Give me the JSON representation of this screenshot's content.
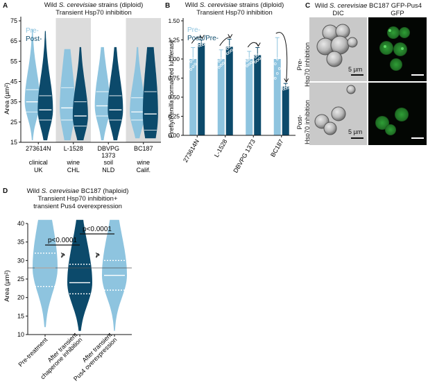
{
  "panelA": {
    "letter": "A",
    "title_l1_pre": "Wild ",
    "title_l1_em": "S. cerevisiae",
    "title_l1_post": " strains (diploid)",
    "title_l2": "Transient Hsp70 inhibition",
    "legend": [
      "Pre-",
      "Post-"
    ],
    "ylabel": "Area (µm²)",
    "yticks": [
      "15",
      "25",
      "35",
      "45",
      "55",
      "65",
      "75"
    ],
    "strains": [
      "273614N",
      "L-1528",
      "DBVPG",
      "BC187"
    ],
    "strain_sub": [
      "",
      "",
      "1373",
      ""
    ],
    "source": [
      "clinical",
      "wine",
      "soil",
      "wine"
    ],
    "origin": [
      "UK",
      "CHL",
      "NLD",
      "Calif."
    ]
  },
  "panelB": {
    "letter": "B",
    "title_l1_pre": "Wild ",
    "title_l1_em": "S. cerevisiae",
    "title_l1_post": " strains (diploid)",
    "title_l2": "Transient Hsp70 inhibition",
    "legend": [
      "Pre-",
      "Post-/Pre-"
    ],
    "ylabel_a": "Firefly/",
    "ylabel_em": "Renilla",
    "ylabel_b": " normalized luciferase",
    "yticks": [
      "0.00",
      "0.25",
      "0.50",
      "0.75",
      "1.00",
      "1.25",
      "1.50"
    ],
    "xlabels": [
      "273614N",
      "L-1528",
      "DBVPG 1373",
      "BC187"
    ]
  },
  "panelC": {
    "letter": "C",
    "title_pre": "Wild ",
    "title_em": "S. cerevisiae",
    "title_post": " BC187 GFP-Pus4",
    "col_dic": "DIC",
    "col_gfp": "GFP",
    "row_pre": [
      "Pre-",
      "Hsp70 inhibition"
    ],
    "row_post": [
      "Post-",
      "Hsp70 inhibition"
    ],
    "scale": "5 µm"
  },
  "panelD": {
    "letter": "D",
    "title_l1_pre": "Wild ",
    "title_l1_em": "S. cerevisiae",
    "title_l1_post": " BC187 (haploid)",
    "title_l2": "Transient Hsp70 inhibition+",
    "title_l3": "transient Pus4 overexpression",
    "ylabel": "Area (µm²)",
    "yticks": [
      "10",
      "15",
      "20",
      "25",
      "30",
      "35",
      "40"
    ],
    "pvals": [
      "p<0.0001",
      "p<0.0001"
    ],
    "xlabels": [
      [
        "Pre-treatment"
      ],
      [
        "After transient",
        "chaperone inhibition"
      ],
      [
        "After transient",
        "Pus4 overexpression"
      ]
    ]
  },
  "chart_data": [
    {
      "type": "violin",
      "title": "Wild S. cerevisiae strains (diploid) Transient Hsp70 inhibition",
      "ylabel": "Area (µm²)",
      "ylim": [
        15,
        75
      ],
      "categories": [
        "273614N",
        "L-1528",
        "DBVPG 1373",
        "BC187"
      ],
      "series": [
        {
          "name": "Pre-",
          "color": "#8ec4df",
          "min": [
            16,
            16,
            16,
            17
          ],
          "max": [
            71,
            61,
            62,
            62
          ],
          "q1": [
            30,
            26,
            28,
            26
          ],
          "median": [
            35,
            32,
            33,
            30
          ],
          "q3": [
            41,
            42,
            40,
            37
          ]
        },
        {
          "name": "Post-",
          "color": "#0c4a6b",
          "min": [
            16,
            16,
            16,
            17
          ],
          "max": [
            70,
            62,
            62,
            62
          ],
          "q1": [
            26,
            23,
            26,
            21
          ],
          "median": [
            31,
            28,
            31,
            29
          ],
          "q3": [
            38,
            35,
            38,
            40
          ]
        }
      ]
    },
    {
      "type": "bar",
      "title": "Wild S. cerevisiae strains (diploid) Transient Hsp70 inhibition",
      "ylabel": "Firefly/Renilla normalized luciferase",
      "ylim": [
        0,
        1.5
      ],
      "categories": [
        "273614N",
        "L-1528",
        "DBVPG 1373",
        "BC187"
      ],
      "series": [
        {
          "name": "Pre-",
          "color": "#8ec4df",
          "values": [
            1.0,
            1.0,
            1.0,
            1.0
          ],
          "error": [
            0.15,
            0.12,
            0.1,
            0.28
          ]
        },
        {
          "name": "Post-/Pre-",
          "color": "#0c4a6b",
          "values": [
            1.21,
            1.16,
            1.05,
            0.64
          ],
          "error": [
            0.04,
            0.1,
            0.1,
            0.04
          ]
        }
      ]
    },
    {
      "type": "violin",
      "title": "Wild S. cerevisiae BC187 (haploid) Transient Hsp70 inhibition+ transient Pus4 overexpression",
      "ylabel": "Area (µm²)",
      "ylim": [
        10,
        40
      ],
      "categories": [
        "Pre-treatment",
        "After transient chaperone inhibition",
        "After transient Pus4 overexpression"
      ],
      "series": [
        {
          "name": "",
          "min": [
            12,
            11,
            11
          ],
          "max": [
            41,
            41,
            41
          ],
          "q1": [
            23,
            21,
            22
          ],
          "median": [
            28,
            24,
            26
          ],
          "q3": [
            32,
            29,
            30
          ]
        }
      ],
      "reference_line": 28,
      "annotations": [
        "p<0.0001",
        "p<0.0001"
      ]
    }
  ],
  "colors": {
    "pre": "#8ec4df",
    "post": "#0c4a6b",
    "shade": "#dcdcdc",
    "gfp": "#33b23c"
  }
}
